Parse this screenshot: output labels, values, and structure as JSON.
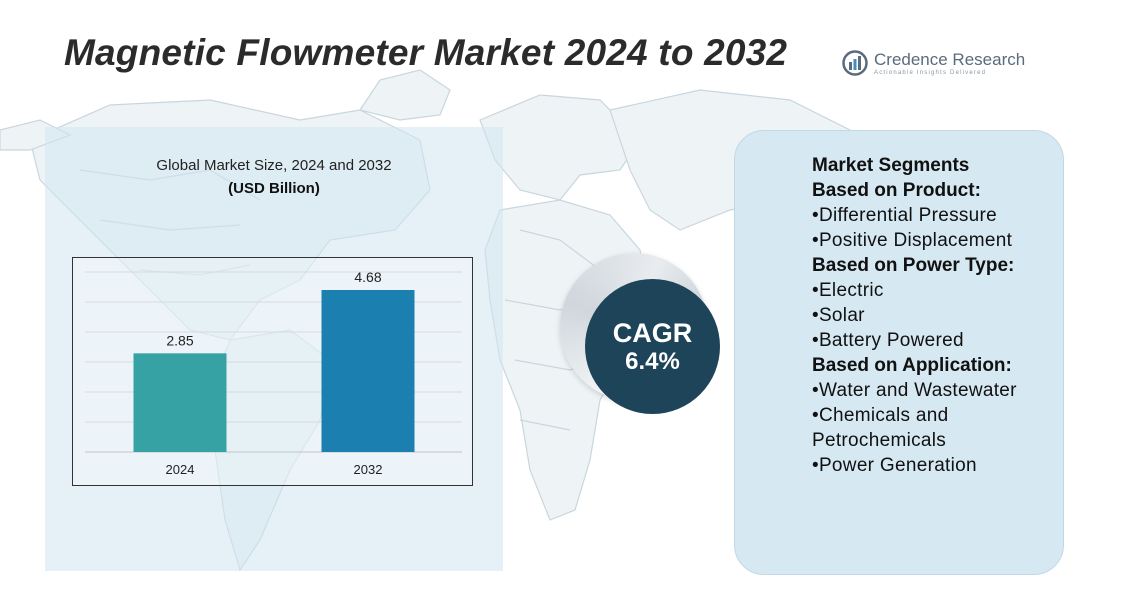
{
  "title": "Magnetic Flowmeter Market 2024 to 2032",
  "brand": {
    "name": "Credence Research",
    "tagline": "Actionable Insights Delivered",
    "color": "#5b6b7e"
  },
  "chart_data": {
    "type": "bar",
    "title": "Global Market Size, 2024 and 2032",
    "subtitle": "(USD Billion)",
    "categories": [
      "2024",
      "2032"
    ],
    "values": [
      2.85,
      4.68
    ],
    "colors": [
      "#36a2a4",
      "#1b7fb0"
    ],
    "ylim": [
      0,
      5.2
    ],
    "grid": true,
    "xlabel": "",
    "ylabel": ""
  },
  "cagr": {
    "label": "CAGR",
    "value": "6.4%",
    "color": "#1e4459"
  },
  "segments": {
    "heading": "Market Segments",
    "groups": [
      {
        "title": "Based on Product:",
        "items": [
          "•Differential Pressure",
          "•Positive Displacement"
        ]
      },
      {
        "title": "Based on Power Type:",
        "items": [
          "•Electric",
          "•Solar",
          "•Battery Powered"
        ]
      },
      {
        "title": "Based on Application:",
        "items": [
          "•Water and Wastewater",
          "•Chemicals and Petrochemicals",
          "•Power Generation"
        ]
      }
    ]
  }
}
